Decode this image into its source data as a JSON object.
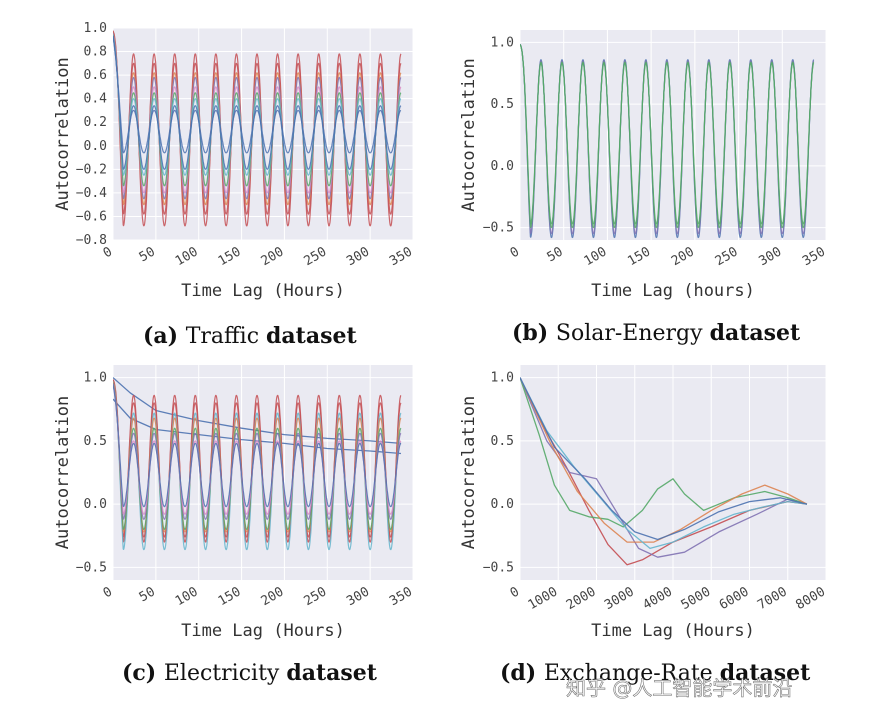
{
  "watermark": "知乎 @人工智能学术前沿",
  "chart_data": [
    {
      "id": "a",
      "type": "line",
      "caption_label": "(a)",
      "caption_name": "Traffic",
      "caption_suffix": "dataset",
      "xlabel": "Time Lag (Hours)",
      "ylabel": "Autocorrelation",
      "xlim": [
        0,
        350
      ],
      "ylim": [
        -0.8,
        1.0
      ],
      "xticks": [
        0,
        50,
        100,
        150,
        200,
        250,
        300,
        350
      ],
      "yticks": [
        -0.8,
        -0.6,
        -0.4,
        -0.2,
        0.0,
        0.2,
        0.4,
        0.6,
        0.8,
        1.0
      ],
      "ytick_labels": [
        "−0.8",
        "−0.6",
        "−0.4",
        "−0.2",
        "0.0",
        "0.2",
        "0.4",
        "0.6",
        "0.8",
        "1.0"
      ],
      "x_max_data": 336,
      "series_model": "periodic 24h",
      "series": [
        {
          "name": "s1",
          "color": "#c44e52",
          "peak": 0.78,
          "trough": -0.68
        },
        {
          "name": "s2",
          "color": "#c44e52",
          "peak": 0.7,
          "trough": -0.58
        },
        {
          "name": "s3",
          "color": "#dd8452",
          "peak": 0.62,
          "trough": -0.5
        },
        {
          "name": "s4",
          "color": "#8172b3",
          "peak": 0.58,
          "trough": -0.45
        },
        {
          "name": "s5",
          "color": "#da8bc3",
          "peak": 0.5,
          "trough": -0.4
        },
        {
          "name": "s6",
          "color": "#55a868",
          "peak": 0.45,
          "trough": -0.34
        },
        {
          "name": "s7",
          "color": "#64b5cd",
          "peak": 0.4,
          "trough": -0.25
        },
        {
          "name": "s8",
          "color": "#4c72b0",
          "peak": 0.34,
          "trough": -0.2
        },
        {
          "name": "s9",
          "color": "#4c72b0",
          "peak": 0.3,
          "trough": -0.06
        }
      ]
    },
    {
      "id": "b",
      "type": "line",
      "caption_label": "(b)",
      "caption_name": "Solar-Energy",
      "caption_suffix": "dataset",
      "xlabel": "Time Lag (hours)",
      "ylabel": "Autocorrelation",
      "xlim": [
        0,
        350
      ],
      "ylim": [
        -0.6,
        1.1
      ],
      "xticks": [
        0,
        50,
        100,
        150,
        200,
        250,
        300,
        350
      ],
      "yticks": [
        -0.5,
        0.0,
        0.5,
        1.0
      ],
      "ytick_labels": [
        "−0.5",
        "0.0",
        "0.5",
        "1.0"
      ],
      "x_max_data": 336,
      "series_model": "periodic 24h",
      "series": [
        {
          "name": "s1",
          "color": "#4c72b0",
          "peak": 0.86,
          "trough": -0.58
        },
        {
          "name": "s2",
          "color": "#8172b3",
          "peak": 0.85,
          "trough": -0.55
        },
        {
          "name": "s3",
          "color": "#55a868",
          "peak": 0.84,
          "trough": -0.5
        },
        {
          "name": "s4",
          "color": "#55a868",
          "peak": 0.83,
          "trough": -0.47
        }
      ]
    },
    {
      "id": "c",
      "type": "line",
      "caption_label": "(c)",
      "caption_name": "Electricity",
      "caption_suffix": "dataset",
      "xlabel": "Time Lag (Hours)",
      "ylabel": "Autocorrelation",
      "xlim": [
        0,
        350
      ],
      "ylim": [
        -0.6,
        1.1
      ],
      "xticks": [
        0,
        50,
        100,
        150,
        200,
        250,
        300,
        350
      ],
      "yticks": [
        -0.5,
        0.0,
        0.5,
        1.0
      ],
      "ytick_labels": [
        "−0.5",
        "0.0",
        "0.5",
        "1.0"
      ],
      "x_max_data": 336,
      "series_model": "periodic 24h",
      "smooth_series": [
        {
          "name": "trend1",
          "color": "#4c72b0",
          "points": [
            [
              0,
              1.0
            ],
            [
              20,
              0.88
            ],
            [
              50,
              0.74
            ],
            [
              100,
              0.66
            ],
            [
              150,
              0.6
            ],
            [
              200,
              0.55
            ],
            [
              250,
              0.52
            ],
            [
              300,
              0.5
            ],
            [
              336,
              0.48
            ]
          ]
        },
        {
          "name": "trend2",
          "color": "#4c72b0",
          "points": [
            [
              0,
              0.83
            ],
            [
              20,
              0.68
            ],
            [
              50,
              0.59
            ],
            [
              100,
              0.55
            ],
            [
              150,
              0.51
            ],
            [
              200,
              0.48
            ],
            [
              250,
              0.44
            ],
            [
              300,
              0.42
            ],
            [
              336,
              0.4
            ]
          ]
        }
      ],
      "series": [
        {
          "name": "s1",
          "color": "#c44e52",
          "peak": 0.86,
          "trough": -0.3
        },
        {
          "name": "s2",
          "color": "#c44e52",
          "peak": 0.8,
          "trough": -0.26
        },
        {
          "name": "s3",
          "color": "#64b5cd",
          "peak": 0.72,
          "trough": -0.36
        },
        {
          "name": "s4",
          "color": "#dd8452",
          "peak": 0.68,
          "trough": -0.22
        },
        {
          "name": "s5",
          "color": "#55a868",
          "peak": 0.6,
          "trough": -0.2
        },
        {
          "name": "s6",
          "color": "#8172b3",
          "peak": 0.56,
          "trough": -0.12
        },
        {
          "name": "s7",
          "color": "#da8bc3",
          "peak": 0.5,
          "trough": -0.08
        },
        {
          "name": "s8",
          "color": "#4c72b0",
          "peak": 0.48,
          "trough": -0.02
        }
      ]
    },
    {
      "id": "d",
      "type": "line",
      "caption_label": "(d)",
      "caption_name": "Exchange-Rate",
      "caption_suffix": "dataset",
      "xlabel": "Time Lag (Hours)",
      "ylabel": "Autocorrelation",
      "xlim": [
        0,
        8000
      ],
      "ylim": [
        -0.6,
        1.1
      ],
      "xticks": [
        0,
        1000,
        2000,
        3000,
        4000,
        5000,
        6000,
        7000,
        8000
      ],
      "yticks": [
        -0.5,
        0.0,
        0.5,
        1.0
      ],
      "ytick_labels": [
        "−0.5",
        "0.0",
        "0.5",
        "1.0"
      ],
      "smooth_series": [
        {
          "name": "r1",
          "color": "#c44e52",
          "points": [
            [
              0,
              1.0
            ],
            [
              600,
              0.62
            ],
            [
              1200,
              0.3
            ],
            [
              1800,
              -0.05
            ],
            [
              2300,
              -0.32
            ],
            [
              2800,
              -0.48
            ],
            [
              3200,
              -0.44
            ],
            [
              4000,
              -0.3
            ],
            [
              5000,
              -0.18
            ],
            [
              6000,
              -0.05
            ],
            [
              7000,
              0.02
            ],
            [
              7500,
              0.0
            ]
          ]
        },
        {
          "name": "r2",
          "color": "#8172b3",
          "points": [
            [
              0,
              1.0
            ],
            [
              700,
              0.5
            ],
            [
              1300,
              0.25
            ],
            [
              2000,
              0.2
            ],
            [
              2600,
              -0.1
            ],
            [
              3100,
              -0.35
            ],
            [
              3600,
              -0.42
            ],
            [
              4300,
              -0.38
            ],
            [
              5200,
              -0.22
            ],
            [
              6200,
              -0.08
            ],
            [
              7000,
              0.04
            ],
            [
              7500,
              0.0
            ]
          ]
        },
        {
          "name": "r3",
          "color": "#55a868",
          "points": [
            [
              0,
              1.0
            ],
            [
              500,
              0.55
            ],
            [
              900,
              0.15
            ],
            [
              1300,
              -0.05
            ],
            [
              1800,
              -0.1
            ],
            [
              2300,
              -0.12
            ],
            [
              2700,
              -0.18
            ],
            [
              3200,
              -0.05
            ],
            [
              3600,
              0.12
            ],
            [
              4000,
              0.2
            ],
            [
              4300,
              0.08
            ],
            [
              4800,
              -0.05
            ],
            [
              5600,
              0.05
            ],
            [
              6400,
              0.1
            ],
            [
              7000,
              0.05
            ],
            [
              7500,
              0.0
            ]
          ]
        },
        {
          "name": "r4",
          "color": "#dd8452",
          "points": [
            [
              0,
              1.0
            ],
            [
              800,
              0.48
            ],
            [
              1500,
              0.1
            ],
            [
              2200,
              -0.15
            ],
            [
              2800,
              -0.3
            ],
            [
              3500,
              -0.3
            ],
            [
              4200,
              -0.2
            ],
            [
              5000,
              -0.05
            ],
            [
              5800,
              0.08
            ],
            [
              6400,
              0.15
            ],
            [
              7000,
              0.08
            ],
            [
              7500,
              0.0
            ]
          ]
        },
        {
          "name": "r5",
          "color": "#64b5cd",
          "points": [
            [
              0,
              1.0
            ],
            [
              700,
              0.58
            ],
            [
              1400,
              0.3
            ],
            [
              2100,
              0.05
            ],
            [
              2800,
              -0.2
            ],
            [
              3400,
              -0.35
            ],
            [
              4000,
              -0.3
            ],
            [
              4800,
              -0.18
            ],
            [
              5600,
              -0.08
            ],
            [
              6400,
              -0.02
            ],
            [
              7000,
              0.02
            ],
            [
              7500,
              0.0
            ]
          ]
        },
        {
          "name": "r6",
          "color": "#4c72b0",
          "points": [
            [
              0,
              1.0
            ],
            [
              900,
              0.45
            ],
            [
              1700,
              0.2
            ],
            [
              2400,
              -0.05
            ],
            [
              3000,
              -0.22
            ],
            [
              3600,
              -0.28
            ],
            [
              4300,
              -0.2
            ],
            [
              5200,
              -0.06
            ],
            [
              6000,
              0.02
            ],
            [
              6800,
              0.05
            ],
            [
              7500,
              0.0
            ]
          ]
        }
      ]
    }
  ]
}
